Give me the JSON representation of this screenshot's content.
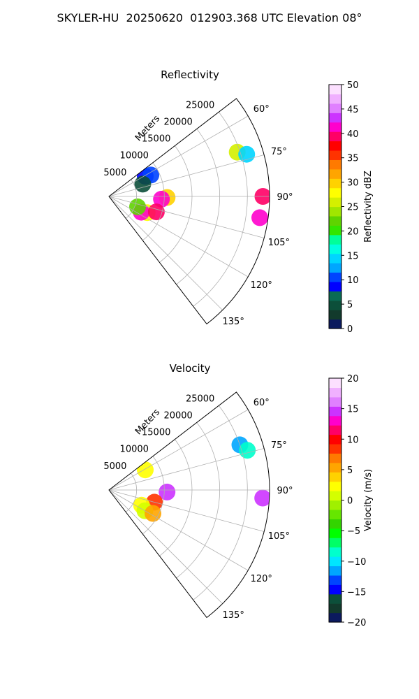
{
  "figure": {
    "title": "SKYLER-HU  20250620  012903.368 UTC Elevation 08°"
  },
  "chart_data": [
    {
      "type": "heatmap",
      "projection": "polar-sector",
      "title": "Reflectivity",
      "radial_label": "Meters",
      "radial_ticks": [
        5000,
        10000,
        15000,
        20000,
        25000
      ],
      "rmax": 29000,
      "azimuth_ticks": [
        60,
        75,
        90,
        105,
        120,
        135
      ],
      "azimuth_range": [
        52.5,
        142.5
      ],
      "grid": true,
      "colorbar": {
        "label": "Reflectivity dBZ",
        "min": 0,
        "max": 50,
        "ticks": [
          0,
          5,
          10,
          15,
          20,
          25,
          30,
          35,
          40,
          45,
          50
        ],
        "colors": [
          "#0b1a5e",
          "#123a2c",
          "#0c4f3a",
          "#0a6b54",
          "#0000ff",
          "#0044ff",
          "#00a6ff",
          "#00d5ff",
          "#00ffe1",
          "#00ff9a",
          "#33e600",
          "#5fd400",
          "#a0e600",
          "#d4f000",
          "#ffff00",
          "#ffd200",
          "#ffa500",
          "#ff7a00",
          "#ff3300",
          "#ff0000",
          "#ff0066",
          "#ff00cc",
          "#cc33ff",
          "#e080ff",
          "#f0b0ff",
          "#fce0ff"
        ]
      },
      "cells": [
        {
          "range": 7500,
          "azimuth": 61,
          "value": 8
        },
        {
          "range": 8500,
          "azimuth": 63,
          "value": 10
        },
        {
          "range": 6500,
          "azimuth": 70,
          "value": 5
        },
        {
          "range": 24500,
          "azimuth": 71,
          "value": 25
        },
        {
          "range": 26000,
          "azimuth": 73,
          "value": 15
        },
        {
          "range": 27800,
          "azimuth": 90,
          "value": 40
        },
        {
          "range": 27500,
          "azimuth": 98,
          "value": 42
        },
        {
          "range": 10500,
          "azimuth": 91,
          "value": 30
        },
        {
          "range": 9500,
          "azimuth": 93,
          "value": 42
        },
        {
          "range": 7500,
          "azimuth": 113,
          "value": 28
        },
        {
          "range": 6500,
          "azimuth": 116,
          "value": 42
        },
        {
          "range": 9000,
          "azimuth": 108,
          "value": 40
        },
        {
          "range": 5500,
          "azimuth": 110,
          "value": 22
        }
      ]
    },
    {
      "type": "heatmap",
      "projection": "polar-sector",
      "title": "Velocity",
      "radial_label": "Meters",
      "radial_ticks": [
        5000,
        10000,
        15000,
        20000,
        25000
      ],
      "rmax": 29000,
      "azimuth_ticks": [
        60,
        75,
        90,
        105,
        120,
        135
      ],
      "azimuth_range": [
        52.5,
        142.5
      ],
      "grid": true,
      "colorbar": {
        "label": "Velocity (m/s)",
        "min": -20,
        "max": 20,
        "ticks": [
          -20,
          -15,
          -10,
          -5,
          0,
          5,
          10,
          15,
          20
        ],
        "colors": [
          "#0b1a5e",
          "#123a2c",
          "#0c4f3a",
          "#0000ff",
          "#0044ff",
          "#00a6ff",
          "#00e6ff",
          "#00ffcc",
          "#00ff66",
          "#00ff00",
          "#33d400",
          "#66e600",
          "#a0f000",
          "#d4ff00",
          "#ffff00",
          "#ffd200",
          "#ffa500",
          "#ff7a00",
          "#ff3300",
          "#ff0000",
          "#ff0066",
          "#ff00cc",
          "#cc33ff",
          "#e080ff",
          "#f0b0ff",
          "#fce0ff"
        ]
      },
      "cells": [
        {
          "range": 7500,
          "azimuth": 61,
          "value": 2
        },
        {
          "range": 25000,
          "azimuth": 71,
          "value": -12
        },
        {
          "range": 26000,
          "azimuth": 74,
          "value": -9
        },
        {
          "range": 27800,
          "azimuth": 93,
          "value": 15
        },
        {
          "range": 10500,
          "azimuth": 92,
          "value": 14
        },
        {
          "range": 8500,
          "azimuth": 105,
          "value": 9
        },
        {
          "range": 6500,
          "azimuth": 115,
          "value": 3
        },
        {
          "range": 7500,
          "azimuth": 120,
          "value": 1
        },
        {
          "range": 9000,
          "azimuth": 118,
          "value": 6
        }
      ]
    }
  ]
}
